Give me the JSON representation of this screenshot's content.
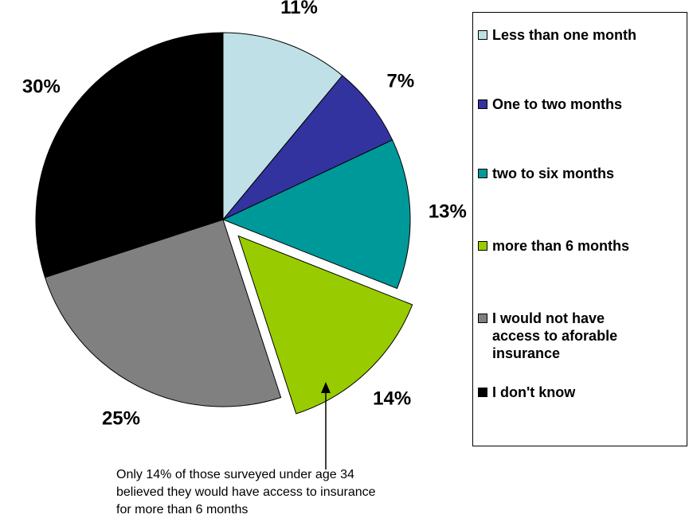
{
  "chart_data": {
    "type": "pie",
    "title": "",
    "categories": [
      "Less than one month",
      "One to two months",
      "two to six months",
      "more than 6 months",
      "I would not have access to aforable insurance",
      "I don't know"
    ],
    "values": [
      11,
      7,
      13,
      14,
      25,
      30
    ],
    "labels": [
      "11%",
      "7%",
      "13%",
      "14%",
      "25%",
      "30%"
    ],
    "colors": [
      "#bfe0e6",
      "#3333a0",
      "#009999",
      "#99cc00",
      "#808080",
      "#000000"
    ],
    "exploded": "more than 6 months",
    "legend_placement": "right",
    "legend_lines": [
      [
        "Less than one month"
      ],
      [
        "One to two months"
      ],
      [
        "two to six months"
      ],
      [
        "more than 6 months"
      ],
      [
        "I would not have",
        "access to aforable",
        "insurance"
      ],
      [
        "I don't know"
      ]
    ],
    "annotation": {
      "lines": [
        "Only 14% of those surveyed under age 34",
        "believed they would have access to insurance",
        "for more than 6 months"
      ],
      "points_to": "more than 6 months"
    }
  }
}
